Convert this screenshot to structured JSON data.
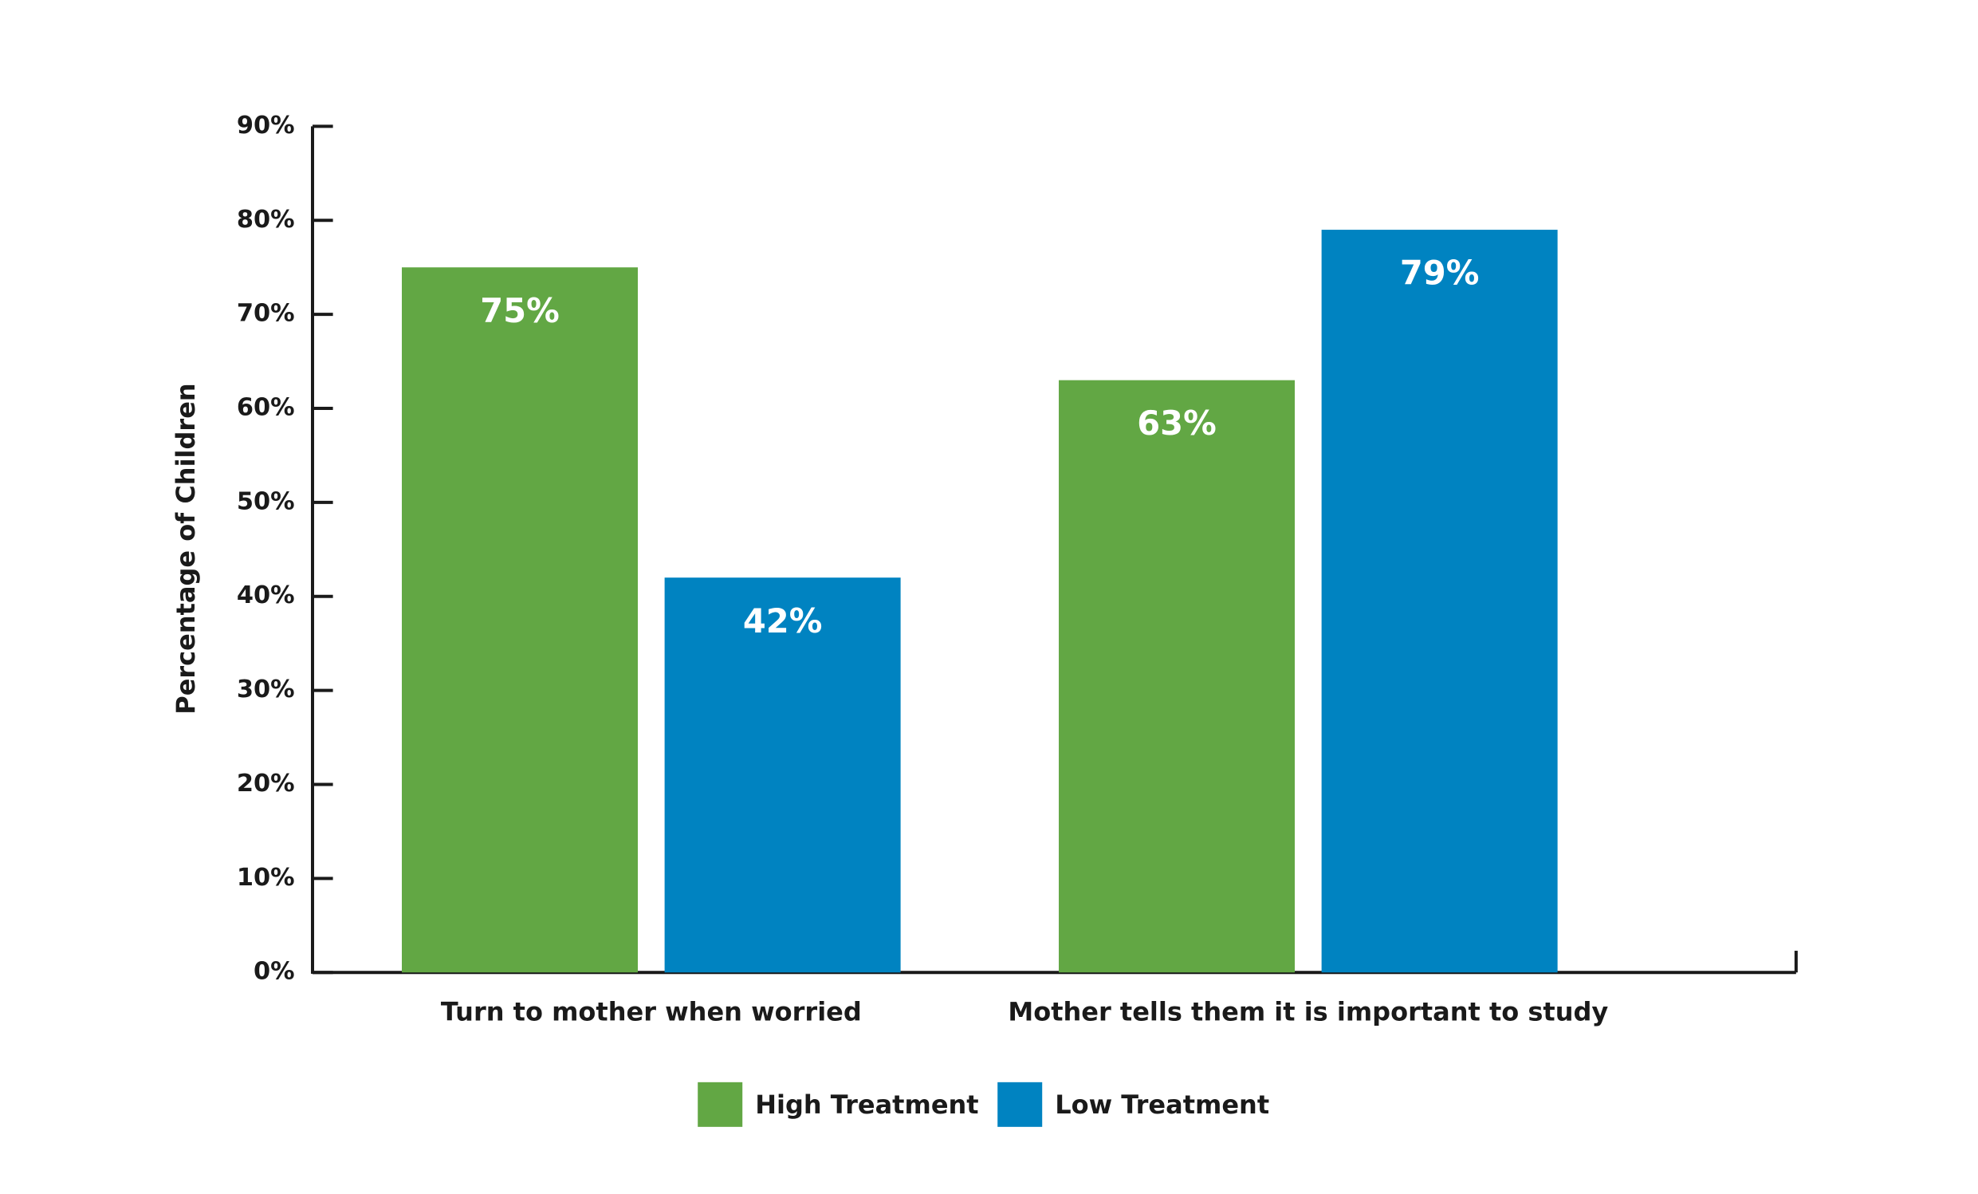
{
  "chart_data": {
    "type": "bar",
    "y_label": "Percentage of Children",
    "categories": [
      "Turn to mother when worried",
      "Mother tells them it is important to study"
    ],
    "series": [
      {
        "name": "High Treatment",
        "color": "#62a744",
        "values": [
          75,
          63
        ],
        "value_labels": [
          "75%",
          "63%"
        ]
      },
      {
        "name": "Low Treatment",
        "color": "#0083c1",
        "values": [
          42,
          79
        ],
        "value_labels": [
          "42%",
          "79%"
        ]
      }
    ],
    "ylim": [
      0,
      90
    ],
    "yticks": [
      {
        "value": 0,
        "label": "0%"
      },
      {
        "value": 10,
        "label": "10%"
      },
      {
        "value": 20,
        "label": "20%"
      },
      {
        "value": 30,
        "label": "30%"
      },
      {
        "value": 40,
        "label": "40%"
      },
      {
        "value": 50,
        "label": "50%"
      },
      {
        "value": 60,
        "label": "60%"
      },
      {
        "value": 70,
        "label": "70%"
      },
      {
        "value": 80,
        "label": "80%"
      },
      {
        "value": 90,
        "label": "90%"
      }
    ],
    "grid": false,
    "legend": "bottom"
  }
}
